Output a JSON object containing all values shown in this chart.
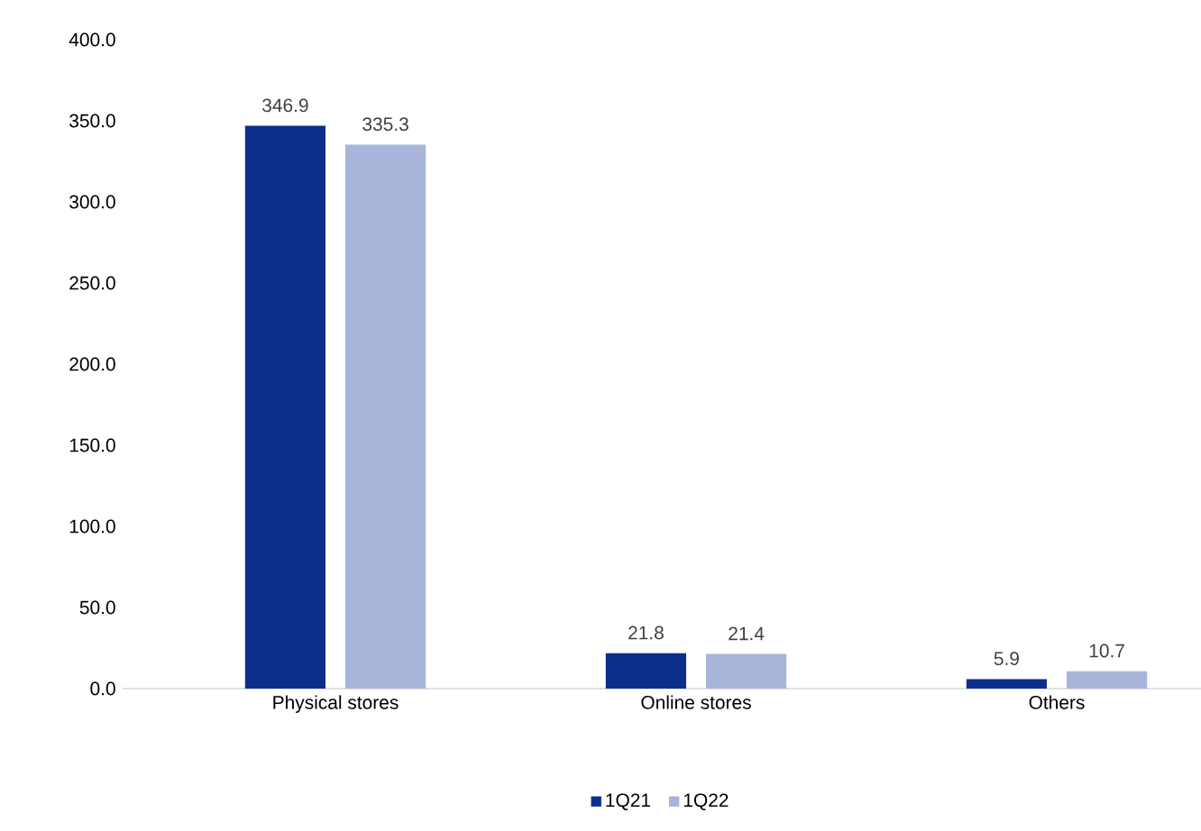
{
  "chart_data": {
    "type": "bar",
    "categories": [
      "Physical stores",
      "Online stores",
      "Others"
    ],
    "series": [
      {
        "name": "1Q21",
        "color": "#0b2f8a",
        "values": [
          346.9,
          21.8,
          5.9
        ]
      },
      {
        "name": "1Q22",
        "color": "#a8b4d9",
        "values": [
          335.3,
          21.4,
          10.7
        ]
      }
    ],
    "ylim": [
      0,
      400
    ],
    "yticks": [
      {
        "value": 0,
        "label": "0.0"
      },
      {
        "value": 50,
        "label": "50.0"
      },
      {
        "value": 100,
        "label": "100.0"
      },
      {
        "value": 150,
        "label": "150.0"
      },
      {
        "value": 200,
        "label": "200.0"
      },
      {
        "value": 250,
        "label": "250.0"
      },
      {
        "value": 300,
        "label": "300.0"
      },
      {
        "value": 350,
        "label": "350.0"
      },
      {
        "value": 400,
        "label": "400.0"
      }
    ],
    "data_labels": true,
    "grid": false,
    "legend": "bottom"
  }
}
